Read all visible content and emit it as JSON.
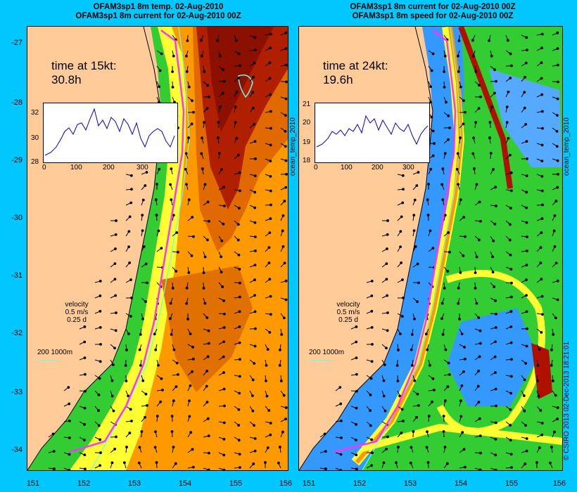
{
  "left": {
    "title_line1": "OFAM3sp1 8m temp. 02-Aug-2010",
    "title_line2": "OFAM3sp1 8m current for 02-Aug-2010 00Z",
    "time_label": "time at 15kt:",
    "time_value": "30.8h",
    "inset_yticks": [
      "32",
      "30",
      "28"
    ],
    "inset_xticks": [
      "0",
      "100",
      "200",
      "300"
    ],
    "side_label": "ocean_temp_2010"
  },
  "right": {
    "title_line1": "OFAM3sp1 8m current for 02-Aug-2010 00Z",
    "title_line2": "OFAM3sp1 8m speed for 02-Aug-2010 00Z",
    "time_label": "time at 24kt:",
    "time_value": "19.6h",
    "inset_yticks": [
      "21",
      "20",
      "19",
      "18"
    ],
    "inset_xticks": [
      "0",
      "100",
      "200",
      "300"
    ],
    "side_label": "ocean_temp_2010"
  },
  "velocity_key": {
    "line1": "velocity",
    "line2": "0.5 m/s",
    "line3": "0.25 d"
  },
  "depth_key": "200  1000m",
  "y_axis_ticks": [
    "-27",
    "-28",
    "-29",
    "-30",
    "-31",
    "-32",
    "-33",
    "-34"
  ],
  "x_axis_ticks": [
    "151",
    "152",
    "153",
    "154",
    "155",
    "156"
  ],
  "credit": "© CSIRO 2013  02-Dec-2013 18:21:01",
  "colors": {
    "background": "#00c8ff",
    "land": "#ffcc99",
    "route": "#ff33ff"
  }
}
